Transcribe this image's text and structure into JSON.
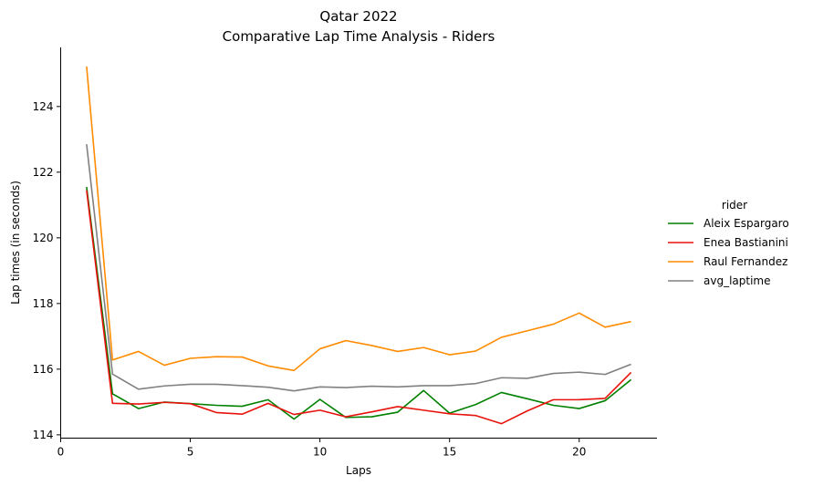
{
  "chart_data": {
    "type": "line",
    "title": "Qatar 2022",
    "subtitle": "Comparative Lap Time Analysis - Riders",
    "xlabel": "Laps",
    "ylabel": "Lap times (in seconds)",
    "xlim": [
      0,
      23
    ],
    "ylim": [
      113.9,
      125.8
    ],
    "xticks": [
      0,
      5,
      10,
      15,
      20
    ],
    "yticks": [
      114,
      116,
      118,
      120,
      122,
      124
    ],
    "grid": false,
    "legend": {
      "title": "rider",
      "placement": "right"
    },
    "x": [
      1,
      2,
      3,
      4,
      5,
      6,
      7,
      8,
      9,
      10,
      11,
      12,
      13,
      14,
      15,
      16,
      17,
      18,
      19,
      20,
      21,
      22
    ],
    "series": [
      {
        "name": "Aleix Espargaro",
        "color": "#008000",
        "values": [
          121.55,
          115.25,
          114.8,
          115.0,
          114.95,
          114.9,
          114.87,
          115.07,
          114.48,
          115.08,
          114.53,
          114.55,
          114.69,
          115.35,
          114.66,
          114.92,
          115.29,
          115.1,
          114.9,
          114.8,
          115.04,
          115.68
        ]
      },
      {
        "name": "Enea Bastianini",
        "color": "#e8120c",
        "values": [
          121.45,
          114.96,
          114.94,
          114.99,
          114.95,
          114.68,
          114.63,
          114.96,
          114.62,
          114.75,
          114.55,
          114.7,
          114.86,
          114.75,
          114.64,
          114.59,
          114.34,
          114.73,
          115.07,
          115.07,
          115.11,
          115.9
        ]
      },
      {
        "name": "Raul Fernandez",
        "color": "#ff8c00",
        "values": [
          125.22,
          116.28,
          116.54,
          116.12,
          116.33,
          116.38,
          116.37,
          116.1,
          115.96,
          116.62,
          116.87,
          116.72,
          116.54,
          116.66,
          116.44,
          116.55,
          116.97,
          117.17,
          117.37,
          117.71,
          117.28,
          117.45
        ]
      },
      {
        "name": "avg_laptime",
        "color": "#808080",
        "values": [
          122.85,
          115.85,
          115.39,
          115.49,
          115.54,
          115.54,
          115.5,
          115.45,
          115.34,
          115.46,
          115.44,
          115.48,
          115.46,
          115.5,
          115.5,
          115.56,
          115.74,
          115.72,
          115.87,
          115.91,
          115.84,
          116.15
        ]
      }
    ]
  }
}
